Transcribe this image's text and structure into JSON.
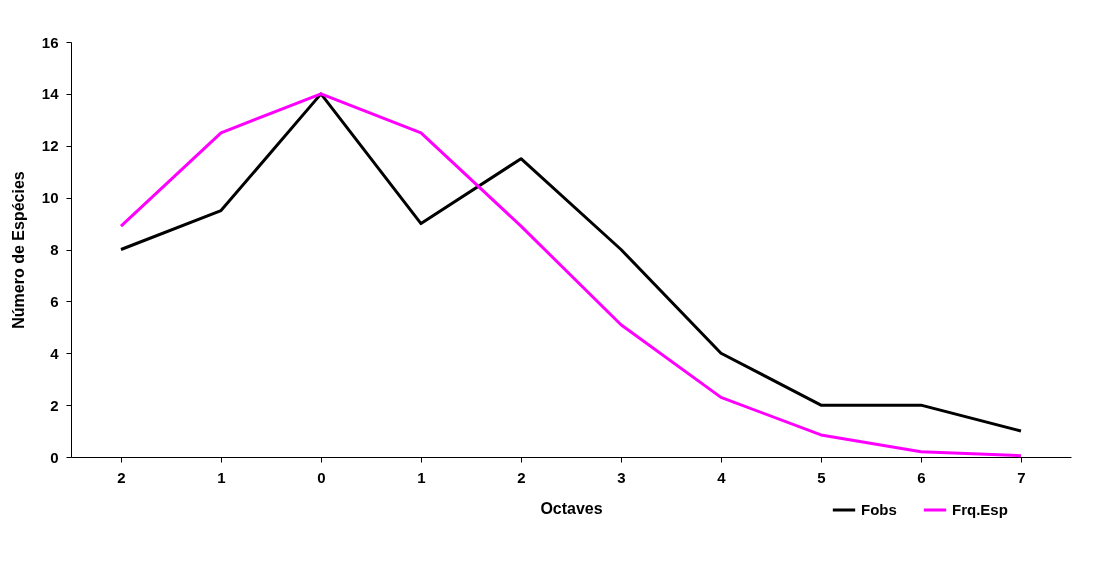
{
  "chart_data": {
    "type": "line",
    "xlabel": "Octaves",
    "ylabel": "Número de Espécies",
    "categories": [
      "2",
      "1",
      "0",
      "1",
      "2",
      "3",
      "4",
      "5",
      "6",
      "7"
    ],
    "series": [
      {
        "name": "Fobs",
        "color": "#000000",
        "values": [
          8,
          9.5,
          14,
          9,
          11.5,
          8,
          4,
          2,
          2,
          1
        ]
      },
      {
        "name": "Frq.Esp",
        "color": "#ff00ff",
        "values": [
          8.9,
          12.5,
          14,
          12.5,
          8.9,
          5.1,
          2.3,
          0.85,
          0.2,
          0.05
        ]
      }
    ],
    "ylim": [
      0,
      16
    ],
    "yticks": [
      0,
      2,
      4,
      6,
      8,
      10,
      12,
      14,
      16
    ],
    "grid": false,
    "legend": "bottom right",
    "marker": "none",
    "line_style": "solid"
  }
}
